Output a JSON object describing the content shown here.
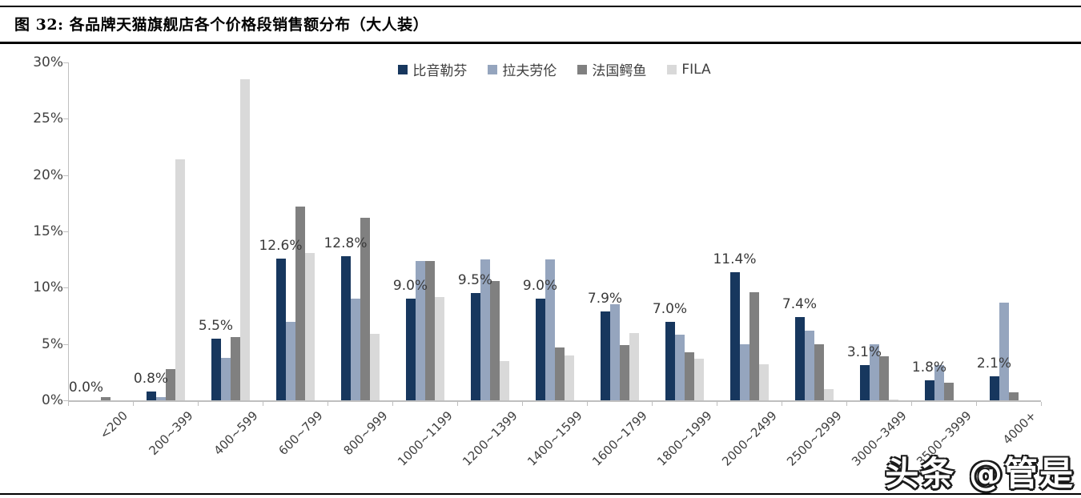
{
  "header": {
    "title": "图 32:  各品牌天猫旗舰店各个价格段销售额分布（大人装）"
  },
  "watermark": "头条 @管是",
  "colors": {
    "series_biyinlefen": "#17375E",
    "series_ralph_lauren": "#95A5BE",
    "series_lacoste": "#808080",
    "series_fila": "#D9D9D9",
    "axis": "#BFBFBF",
    "text": "#404040"
  },
  "chart_data": {
    "type": "bar",
    "title": "各品牌天猫旗舰店各个价格段销售额分布（大人装）",
    "xlabel": "",
    "ylabel": "",
    "ylim": [
      0,
      30
    ],
    "grid": false,
    "legend_position": "top-center",
    "ytick_values": [
      0,
      5,
      10,
      15,
      20,
      25,
      30
    ],
    "ytick_labels": [
      "0%",
      "5%",
      "10%",
      "15%",
      "20%",
      "25%",
      "30%"
    ],
    "categories": [
      "<200",
      "200~399",
      "400~599",
      "600~799",
      "800~999",
      "1000~1199",
      "1200~1399",
      "1400~1599",
      "1600~1799",
      "1800~1999",
      "2000~2499",
      "2500~2999",
      "3000~3499",
      "3500~3999",
      "4000+"
    ],
    "series": [
      {
        "name": "比音勒芬",
        "color": "#17375E",
        "values": [
          0.0,
          0.8,
          5.5,
          12.6,
          12.8,
          9.0,
          9.5,
          9.0,
          7.9,
          7.0,
          11.4,
          7.4,
          3.1,
          1.8,
          2.1
        ],
        "labels": [
          "0.0%",
          "0.8%",
          "5.5%",
          "12.6%",
          "12.8%",
          "9.0%",
          "9.5%",
          "9.0%",
          "7.9%",
          "7.0%",
          "11.4%",
          "7.4%",
          "3.1%",
          "1.8%",
          "2.1%"
        ]
      },
      {
        "name": "拉夫劳伦",
        "color": "#95A5BE",
        "values": [
          0.0,
          0.3,
          3.8,
          7.0,
          9.0,
          12.4,
          12.5,
          12.5,
          8.5,
          5.8,
          5.0,
          6.2,
          5.0,
          3.1,
          8.7
        ]
      },
      {
        "name": "法国鳄鱼",
        "color": "#808080",
        "values": [
          0.3,
          2.8,
          5.6,
          17.2,
          16.2,
          12.4,
          10.6,
          4.7,
          4.9,
          4.3,
          9.6,
          5.0,
          3.9,
          1.6,
          0.7
        ]
      },
      {
        "name": "FILA",
        "color": "#D9D9D9",
        "values": [
          0.0,
          21.4,
          28.5,
          13.1,
          5.9,
          9.2,
          3.5,
          4.0,
          6.0,
          3.7,
          3.2,
          1.0,
          0.1,
          0.0,
          0.0
        ]
      }
    ]
  }
}
